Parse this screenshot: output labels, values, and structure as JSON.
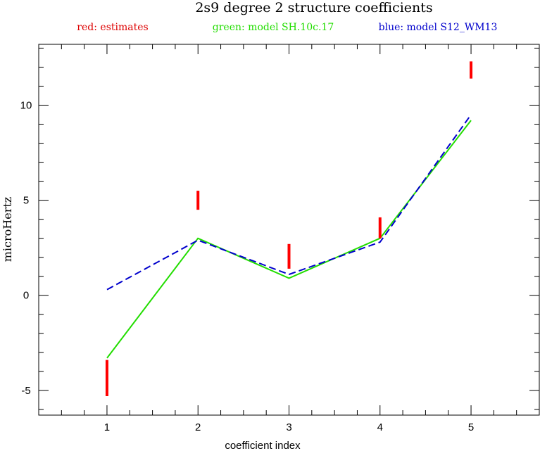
{
  "chart_data": {
    "type": "line",
    "title": "2s9 degree 2 structure coefficients",
    "xlabel": "coefficient index",
    "ylabel": "microHertz",
    "xlim": [
      0.25,
      5.75
    ],
    "ylim": [
      -6.3,
      13.2
    ],
    "x_ticks": [
      1,
      2,
      3,
      4,
      5
    ],
    "y_ticks": [
      -5,
      0,
      5,
      10
    ],
    "x_minor_step": 0.25,
    "y_minor_step": 1,
    "grid": false,
    "legend_placement": "top",
    "legend": [
      {
        "text": "red: estimates",
        "color": "#dd0000"
      },
      {
        "text": "green: model SH.10c.17",
        "color": "#22dd00"
      },
      {
        "text": "blue: model S12_WM13",
        "color": "#0000cc"
      }
    ],
    "estimates": {
      "color": "#ff0000",
      "bars": [
        {
          "x": 1,
          "low": -5.3,
          "high": -3.4
        },
        {
          "x": 2,
          "low": 4.5,
          "high": 5.5
        },
        {
          "x": 3,
          "low": 1.4,
          "high": 2.7
        },
        {
          "x": 4,
          "low": 3.0,
          "high": 4.1
        },
        {
          "x": 5,
          "low": 11.4,
          "high": 12.3
        }
      ]
    },
    "series": [
      {
        "color": "#22dd00",
        "style": "solid",
        "x": [
          1,
          2,
          3,
          4,
          5
        ],
        "values": [
          -3.3,
          3.0,
          0.9,
          3.0,
          9.2
        ]
      },
      {
        "color": "#0000cc",
        "style": "dashed",
        "x": [
          1,
          2,
          3,
          4,
          5
        ],
        "values": [
          0.3,
          2.9,
          1.1,
          2.8,
          9.5
        ]
      }
    ]
  }
}
